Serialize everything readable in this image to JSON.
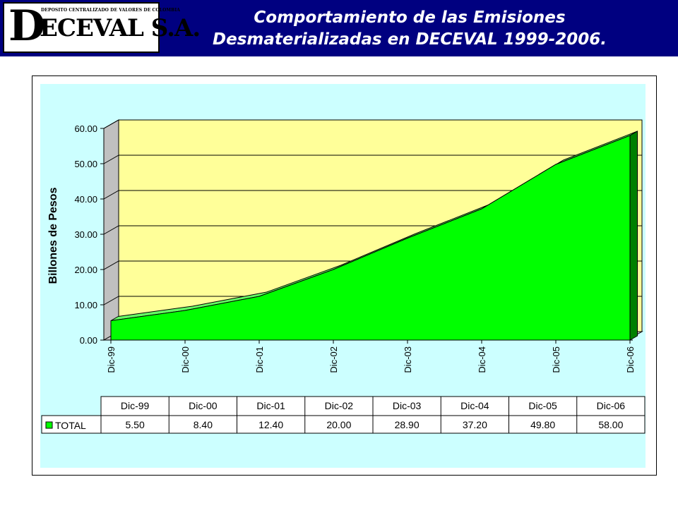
{
  "header": {
    "logo_tagline": "DEPOSITO CENTRALIZADO DE VALORES DE COLOMBIA",
    "logo_initial": "D",
    "logo_name": "ECEVAL S.A.",
    "title_line1": "Comportamiento de las Emisiones",
    "title_line2": "Desmaterializadas en DECEVAL 1999-2006."
  },
  "colors": {
    "banner": "#000080",
    "plot_area": "#CCFFFF",
    "back_wall": "#FFFF99",
    "series_fill": "#00FF00",
    "series_side": "#008000"
  },
  "chart_data": {
    "type": "area",
    "title": "",
    "xlabel": "",
    "ylabel": "Billones de Pesos",
    "categories": [
      "Dic-99",
      "Dic-00",
      "Dic-01",
      "Dic-02",
      "Dic-03",
      "Dic-04",
      "Dic-05",
      "Dic-06"
    ],
    "series": [
      {
        "name": "TOTAL",
        "values": [
          5.5,
          8.4,
          12.4,
          20.0,
          28.9,
          37.2,
          49.8,
          58.0
        ]
      }
    ],
    "ylim": [
      0,
      60
    ],
    "yticks": [
      "0.00",
      "10.00",
      "20.00",
      "30.00",
      "40.00",
      "50.00",
      "60.00"
    ],
    "value_labels": [
      "5.50",
      "8.40",
      "12.40",
      "20.00",
      "28.90",
      "37.20",
      "49.80",
      "58.00"
    ],
    "grid": true,
    "three_d": true,
    "data_table": true
  }
}
